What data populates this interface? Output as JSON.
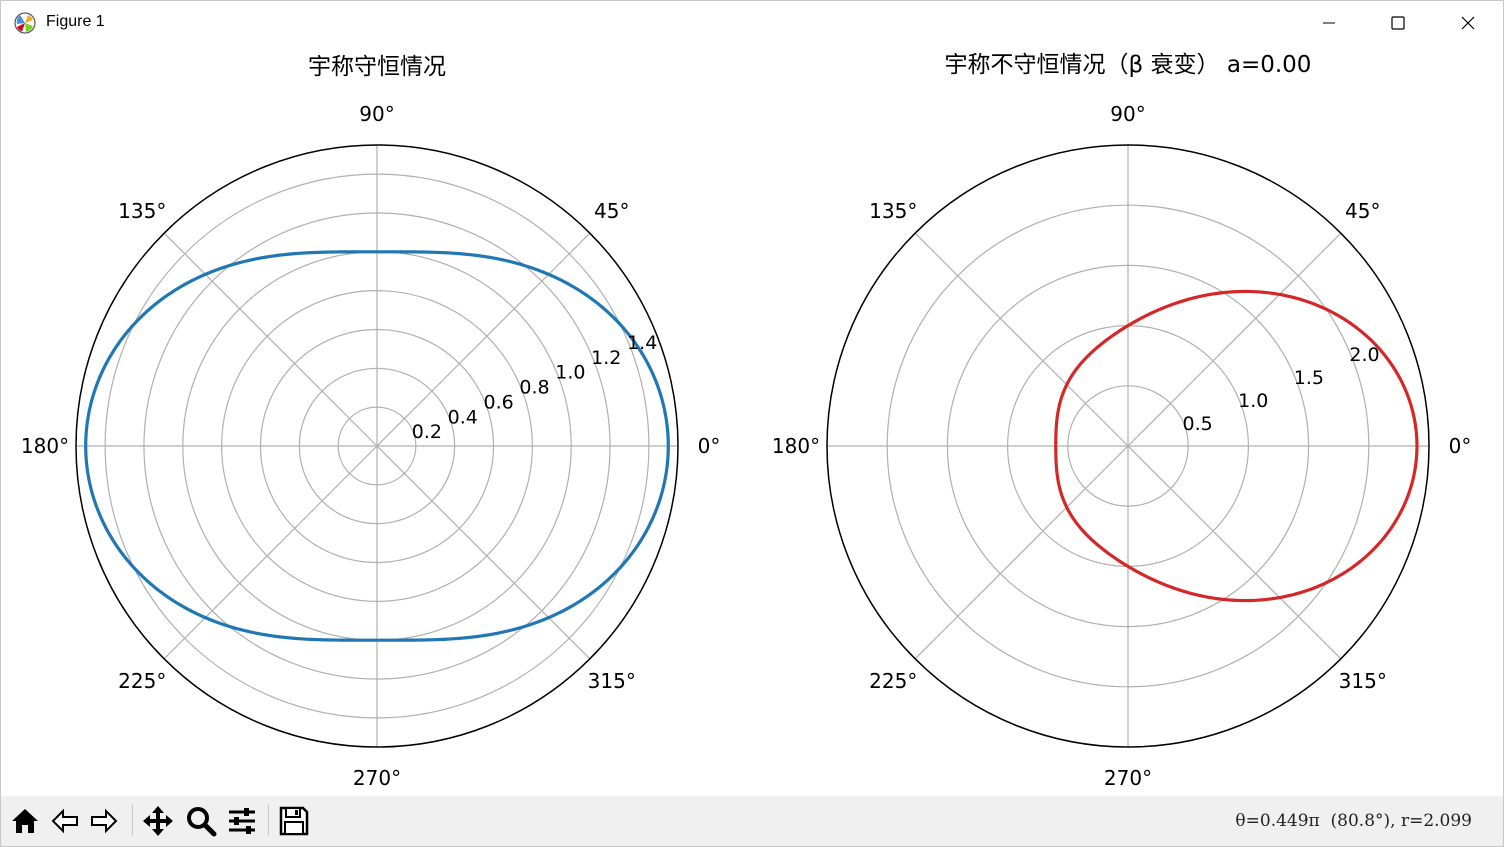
{
  "window": {
    "title": "Figure 1"
  },
  "toolbar": {
    "tools": [
      "home-icon",
      "back-icon",
      "forward-icon",
      "pan-icon",
      "zoom-icon",
      "configure-subplots-icon",
      "save-icon"
    ],
    "coordinate_text": "θ=0.449π  (80.8°), r=2.099"
  },
  "chart_data": [
    {
      "type": "line",
      "projection": "polar",
      "title": "宇称守恒情况",
      "theta_tick_labels": [
        "0°",
        "45°",
        "90°",
        "135°",
        "180°",
        "225°",
        "270°",
        "315°"
      ],
      "r_ticks": [
        0.2,
        0.4,
        0.6,
        0.8,
        1.0,
        1.2,
        1.4
      ],
      "r_tick_labels": [
        "0.2",
        "0.4",
        "0.6",
        "0.8",
        "1.0",
        "1.2",
        "1.4"
      ],
      "r_tick_angle_deg": 22.5,
      "rlim": [
        0,
        1.55
      ],
      "grid": true,
      "series": [
        {
          "color": "#1f77b4",
          "formula": "r = 1 + 0.5*cos(theta)^2",
          "samples_deg": [
            0,
            45,
            90,
            135,
            180,
            225,
            270,
            315
          ],
          "samples_r": [
            1.5,
            1.25,
            1.0,
            1.25,
            1.5,
            1.25,
            1.0,
            1.25
          ]
        }
      ]
    },
    {
      "type": "line",
      "projection": "polar",
      "title": "宇称不守恒情况（β 衰变） a=0.00",
      "theta_tick_labels": [
        "0°",
        "45°",
        "90°",
        "135°",
        "180°",
        "225°",
        "270°",
        "315°"
      ],
      "r_ticks": [
        0.5,
        1.0,
        1.5,
        2.0
      ],
      "r_tick_labels": [
        "0.5",
        "1.0",
        "1.5",
        "2.0"
      ],
      "r_tick_angle_deg": 22.5,
      "rlim": [
        0,
        2.5
      ],
      "grid": true,
      "series": [
        {
          "color": "#d62728",
          "formula": "r = (1 + 0.5*cos(theta)^2) * (1 + 0.6*cos(theta))",
          "samples_deg": [
            0,
            45,
            90,
            135,
            180,
            225,
            270,
            315
          ],
          "samples_r": [
            2.4,
            1.8,
            1.0,
            0.72,
            0.6,
            0.72,
            1.0,
            1.8
          ]
        }
      ]
    }
  ]
}
